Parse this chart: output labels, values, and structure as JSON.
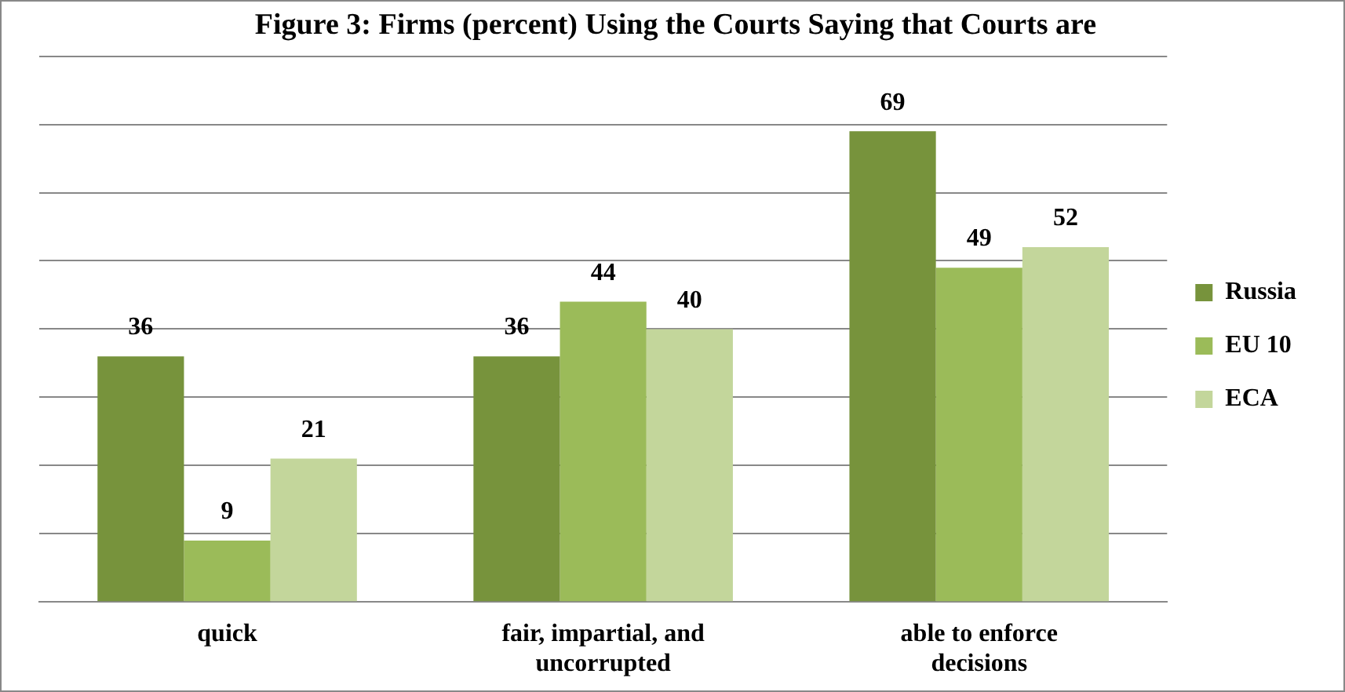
{
  "chart_data": {
    "type": "bar",
    "title": "Figure 3: Firms (percent) Using the Courts Saying that Courts are",
    "categories": [
      "quick",
      "fair, impartial, and uncorrupted",
      "able to enforce decisions"
    ],
    "series": [
      {
        "name": "Russia",
        "color": "#77933c",
        "values": [
          36,
          36,
          69
        ]
      },
      {
        "name": "EU 10",
        "color": "#9bbb59",
        "values": [
          9,
          44,
          49
        ]
      },
      {
        "name": "ECA",
        "color": "#c3d69b",
        "values": [
          21,
          40,
          52
        ]
      }
    ],
    "ylim": [
      0,
      80
    ],
    "yticks": [
      {
        "value": 0,
        "label": null
      },
      {
        "value": 10,
        "label": null
      },
      {
        "value": 20,
        "label": null
      },
      {
        "value": 30,
        "label": null
      },
      {
        "value": 40,
        "label": null
      },
      {
        "value": 50,
        "label": null
      },
      {
        "value": 60,
        "label": null
      },
      {
        "value": 70,
        "label": null
      },
      {
        "value": 80,
        "label": null
      }
    ],
    "tick_labels": "x",
    "grid": "y",
    "legend": "right",
    "data_labels": true
  }
}
